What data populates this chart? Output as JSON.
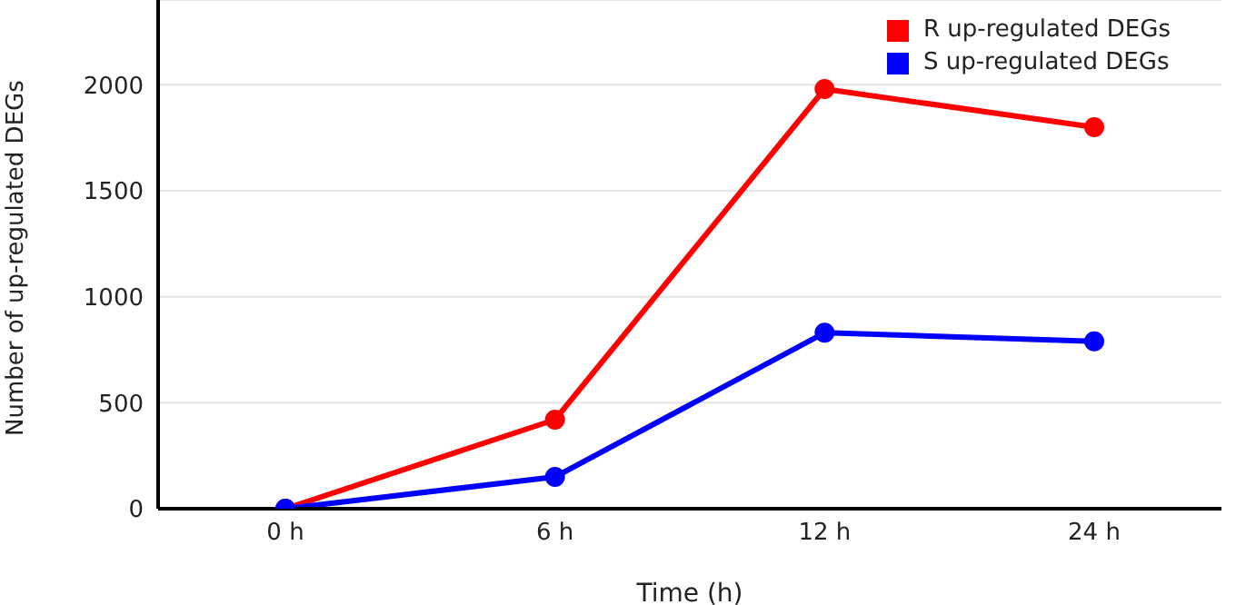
{
  "chart_data": {
    "type": "line",
    "xlabel": "Time (h)",
    "ylabel": "Number of up-regulated DEGs",
    "categories": [
      "0 h",
      "6 h",
      "12 h",
      "24 h"
    ],
    "series": [
      {
        "name": "R up-regulated DEGs",
        "color": "#ff0000",
        "values": [
          0,
          420,
          1980,
          1800
        ]
      },
      {
        "name": "S up-regulated DEGs",
        "color": "#0000ff",
        "values": [
          0,
          150,
          830,
          790
        ]
      }
    ],
    "ylim": [
      0,
      2400
    ],
    "yticks": [
      0,
      500,
      1000,
      1500,
      2000
    ],
    "grid": "y",
    "legend": "top right",
    "marker": "circle",
    "line_style": "solid"
  }
}
